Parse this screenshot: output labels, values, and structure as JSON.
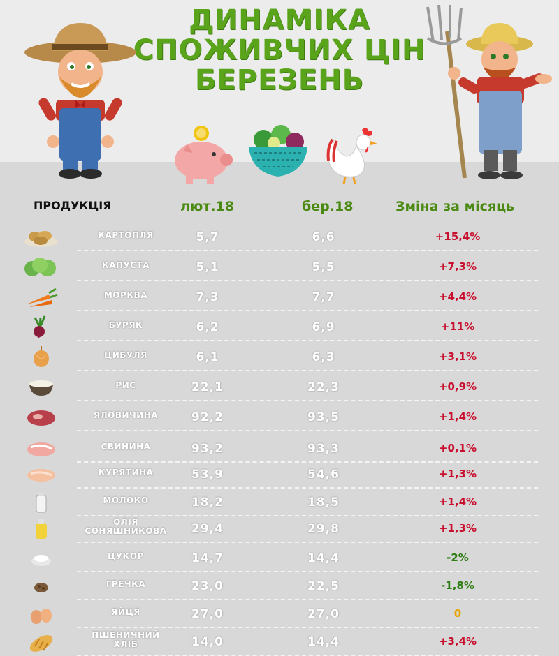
{
  "title": [
    "ДИНАМІКА",
    "СПОЖИВЧИХ ЦІН",
    "БЕРЕЗЕНЬ"
  ],
  "headers": {
    "product": "ПРОДУКЦІЯ",
    "feb": "лют.18",
    "mar": "бер.18",
    "change": "Зміна за місяць"
  },
  "colors": {
    "up": "#c8102e",
    "down": "#2e7d12",
    "zero": "#e6a400",
    "title": "#5aa41c"
  },
  "rows": [
    {
      "name": "КАРТОПЛЯ",
      "feb": "5,7",
      "mar": "6,6",
      "change": "+15,4%",
      "trend": "up",
      "icon": "potato-icon"
    },
    {
      "name": "КАПУСТА",
      "feb": "5,1",
      "mar": "5,5",
      "change": "+7,3%",
      "trend": "up",
      "icon": "cabbage-icon"
    },
    {
      "name": "МОРКВА",
      "feb": "7,3",
      "mar": "7,7",
      "change": "+4,4%",
      "trend": "up",
      "icon": "carrot-icon"
    },
    {
      "name": "БУРЯК",
      "feb": "6,2",
      "mar": "6,9",
      "change": "+11%",
      "trend": "up",
      "icon": "beet-icon"
    },
    {
      "name": "ЦИБУЛЯ",
      "feb": "6,1",
      "mar": "6,3",
      "change": "+3,1%",
      "trend": "up",
      "icon": "onion-icon"
    },
    {
      "name": "РИС",
      "feb": "22,1",
      "mar": "22,3",
      "change": "+0,9%",
      "trend": "up",
      "icon": "rice-icon"
    },
    {
      "name": "ЯЛОВИЧИНА",
      "feb": "92,2",
      "mar": "93,5",
      "change": "+1,4%",
      "trend": "up",
      "icon": "beef-icon"
    },
    {
      "name": "СВИНИНА",
      "feb": "93,2",
      "mar": "93,3",
      "change": "+0,1%",
      "trend": "up",
      "icon": "pork-icon"
    },
    {
      "name": "КУРЯТИНА",
      "feb": "53,9",
      "mar": "54,6",
      "change": "+1,3%",
      "trend": "up",
      "icon": "chicken-meat-icon"
    },
    {
      "name": "МОЛОКО",
      "feb": "18,2",
      "mar": "18,5",
      "change": "+1,4%",
      "trend": "up",
      "icon": "milk-icon"
    },
    {
      "name": "ОЛІЯ\nСОНЯШНИКОВА",
      "feb": "29,4",
      "mar": "29,8",
      "change": "+1,3%",
      "trend": "up",
      "icon": "oil-icon"
    },
    {
      "name": "ЦУКОР",
      "feb": "14,7",
      "mar": "14,4",
      "change": "-2%",
      "trend": "down",
      "icon": "sugar-icon"
    },
    {
      "name": "ГРЕЧКА",
      "feb": "23,0",
      "mar": "22,5",
      "change": "-1,8%",
      "trend": "down",
      "icon": "buckwheat-icon"
    },
    {
      "name": "ЯЙЦЯ",
      "feb": "27,0",
      "mar": "27,0",
      "change": "0",
      "trend": "zero",
      "icon": "eggs-icon"
    },
    {
      "name": "ПШЕНИЧНИЙ\nХЛІБ",
      "feb": "14,0",
      "mar": "14,4",
      "change": "+3,4%",
      "trend": "up",
      "icon": "bread-icon"
    }
  ]
}
